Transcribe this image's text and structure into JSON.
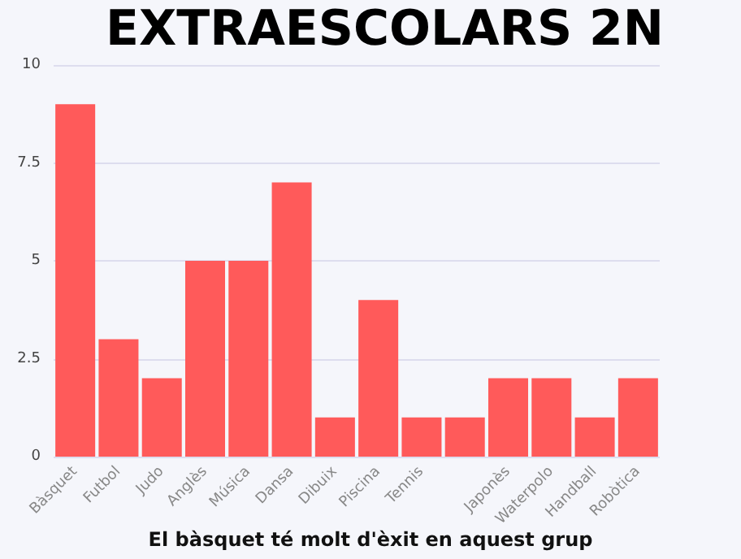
{
  "chart_data": {
    "type": "bar",
    "title": "EXTRAESCOLARS 2N",
    "categories": [
      "Bàsquet",
      "Futbol",
      "Judo",
      "Anglès",
      "Música",
      "Dansa",
      "Dibuix",
      "Piscina",
      "Tennis",
      null,
      "Japonès",
      "Waterpolo",
      "Handball",
      "Robòtica"
    ],
    "values": [
      9,
      3,
      2,
      5,
      5,
      7,
      1,
      4,
      1,
      1,
      2,
      2,
      1,
      2
    ],
    "color": "#ff5a5a",
    "ylim": [
      0,
      10
    ],
    "yticks": [
      0,
      2.5,
      5,
      7.5,
      10
    ],
    "grid": "y",
    "annotations": [
      "El bàsquet té molt d'èxit en aquest grup"
    ]
  }
}
